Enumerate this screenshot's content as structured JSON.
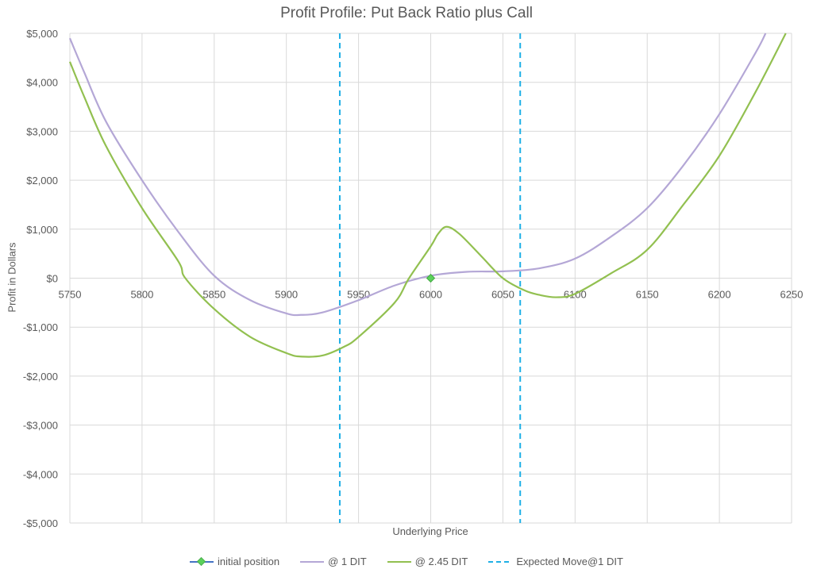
{
  "chart_data": {
    "type": "line",
    "title": "Profit Profile: Put Back Ratio plus Call",
    "xlabel": "Underlying Price",
    "ylabel": "Profit in Dollars",
    "xlim": [
      5750,
      6250
    ],
    "ylim": [
      -5000,
      5000
    ],
    "x_ticks": [
      5750,
      5800,
      5850,
      5900,
      5950,
      6000,
      6050,
      6100,
      6150,
      6200,
      6250
    ],
    "y_ticks": [
      5000,
      4000,
      3000,
      2000,
      1000,
      0,
      -1000,
      -2000,
      -3000,
      -4000,
      -5000
    ],
    "y_tick_labels": [
      "$5,000",
      "$4,000",
      "$3,000",
      "$2,000",
      "$1,000",
      "$0",
      "-$1,000",
      "-$2,000",
      "-$3,000",
      "-$4,000",
      "-$5,000"
    ],
    "grid": true,
    "legend_position": "bottom",
    "series": [
      {
        "name": "initial position",
        "color": "#4472C4",
        "marker_color": "#5BD15B",
        "style": "marker",
        "x": [
          6000
        ],
        "y": [
          0
        ]
      },
      {
        "name": "@ 1 DIT",
        "color": "#B4A7D6",
        "style": "solid",
        "x": [
          5750,
          5760,
          5775,
          5800,
          5825,
          5850,
          5875,
          5900,
          5910,
          5925,
          5950,
          5975,
          6000,
          6025,
          6050,
          6075,
          6100,
          6125,
          6150,
          6175,
          6200,
          6225,
          6232
        ],
        "y": [
          4900,
          4200,
          3200,
          2000,
          950,
          50,
          -450,
          -720,
          -750,
          -700,
          -450,
          -150,
          50,
          130,
          140,
          200,
          400,
          850,
          1430,
          2300,
          3350,
          4600,
          5000
        ]
      },
      {
        "name": "@ 2.45 DIT",
        "color": "#92C050",
        "style": "solid",
        "x": [
          5750,
          5760,
          5775,
          5800,
          5825,
          5830,
          5850,
          5875,
          5900,
          5910,
          5925,
          5940,
          5950,
          5975,
          5985,
          6000,
          6005,
          6011,
          6020,
          6035,
          6050,
          6065,
          6075,
          6087,
          6100,
          6125,
          6150,
          6175,
          6200,
          6225,
          6246
        ],
        "y": [
          4420,
          3700,
          2700,
          1430,
          350,
          0,
          -630,
          -1200,
          -1530,
          -1600,
          -1580,
          -1400,
          -1200,
          -500,
          0,
          650,
          900,
          1050,
          900,
          450,
          0,
          -250,
          -340,
          -390,
          -320,
          100,
          580,
          1500,
          2500,
          3800,
          5000
        ]
      },
      {
        "name": "Expected Move@1 DIT",
        "color": "#1FB0E6",
        "style": "dashed",
        "vlines": [
          5937,
          6062
        ]
      }
    ]
  }
}
